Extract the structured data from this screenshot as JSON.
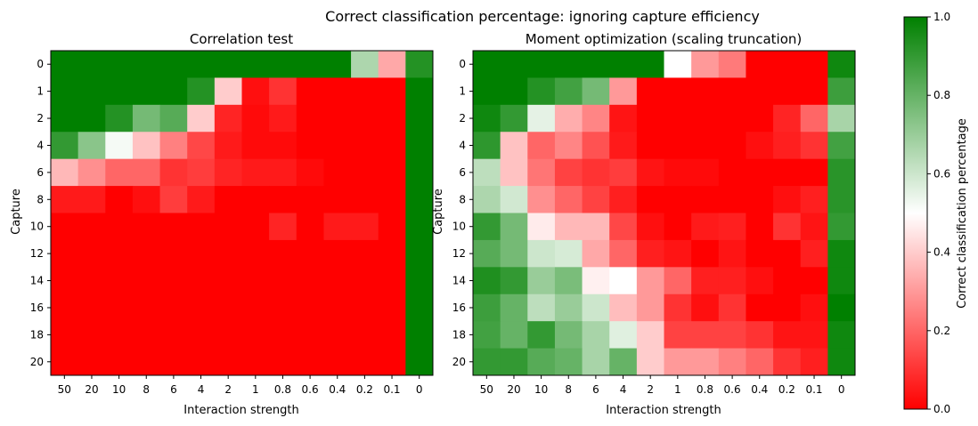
{
  "figure": {
    "suptitle": "Correct classification percentage: ignoring capture efficiency"
  },
  "colors": {
    "low": "#ff0000",
    "mid": "#ffffff",
    "high": "#008000"
  },
  "colorbar": {
    "label": "Correct classification percentage",
    "range": [
      0,
      1
    ],
    "ticks": [
      "0.0",
      "0.2",
      "0.4",
      "0.6",
      "0.8",
      "1.0"
    ]
  },
  "chart_data": [
    {
      "type": "heatmap",
      "title": "Correlation test",
      "xlabel": "Interaction strength",
      "ylabel": "Capture",
      "x": [
        "50",
        "20",
        "10",
        "8",
        "6",
        "4",
        "2",
        "1",
        "0.8",
        "0.6",
        "0.4",
        "0.2",
        "0.1",
        "0"
      ],
      "y": [
        "0",
        "1",
        "2",
        "4",
        "6",
        "8",
        "10",
        "12",
        "14",
        "16",
        "18",
        "20"
      ],
      "values": [
        [
          1.0,
          1.0,
          1.0,
          1.0,
          1.0,
          1.0,
          1.0,
          1.0,
          1.0,
          1.0,
          1.0,
          0.66,
          0.33,
          0.93
        ],
        [
          1.0,
          1.0,
          1.0,
          1.0,
          1.0,
          0.93,
          0.4,
          0.03,
          0.1,
          0.0,
          0.0,
          0.0,
          0.0,
          1.0
        ],
        [
          1.0,
          1.0,
          0.93,
          0.77,
          0.83,
          0.4,
          0.07,
          0.02,
          0.05,
          0.0,
          0.0,
          0.0,
          0.0,
          1.0
        ],
        [
          0.9,
          0.73,
          0.52,
          0.38,
          0.25,
          0.14,
          0.05,
          0.02,
          0.02,
          0.0,
          0.0,
          0.0,
          0.0,
          1.0
        ],
        [
          0.36,
          0.28,
          0.2,
          0.2,
          0.1,
          0.12,
          0.07,
          0.05,
          0.05,
          0.02,
          0.0,
          0.0,
          0.0,
          1.0
        ],
        [
          0.05,
          0.05,
          0.0,
          0.03,
          0.12,
          0.05,
          0.0,
          0.0,
          0.0,
          0.0,
          0.0,
          0.0,
          0.0,
          1.0
        ],
        [
          0.0,
          0.0,
          0.0,
          0.0,
          0.0,
          0.0,
          0.0,
          0.0,
          0.07,
          0.0,
          0.05,
          0.05,
          0.0,
          1.0
        ],
        [
          0.0,
          0.0,
          0.0,
          0.0,
          0.0,
          0.0,
          0.0,
          0.0,
          0.0,
          0.0,
          0.0,
          0.0,
          0.0,
          1.0
        ],
        [
          0.0,
          0.0,
          0.0,
          0.0,
          0.0,
          0.0,
          0.0,
          0.0,
          0.0,
          0.0,
          0.0,
          0.0,
          0.0,
          1.0
        ],
        [
          0.0,
          0.0,
          0.0,
          0.0,
          0.0,
          0.0,
          0.0,
          0.0,
          0.0,
          0.0,
          0.0,
          0.0,
          0.0,
          1.0
        ],
        [
          0.0,
          0.0,
          0.0,
          0.0,
          0.0,
          0.0,
          0.0,
          0.0,
          0.0,
          0.0,
          0.0,
          0.0,
          0.0,
          1.0
        ],
        [
          0.0,
          0.0,
          0.0,
          0.0,
          0.0,
          0.0,
          0.0,
          0.0,
          0.0,
          0.0,
          0.0,
          0.0,
          0.0,
          1.0
        ]
      ]
    },
    {
      "type": "heatmap",
      "title": "Moment optimization (scaling truncation)",
      "xlabel": "Interaction strength",
      "ylabel": "Capture",
      "x": [
        "50",
        "20",
        "10",
        "8",
        "6",
        "4",
        "2",
        "1",
        "0.8",
        "0.6",
        "0.4",
        "0.2",
        "0.1",
        "0"
      ],
      "y": [
        "0",
        "1",
        "2",
        "4",
        "6",
        "8",
        "10",
        "12",
        "14",
        "16",
        "18",
        "20"
      ],
      "values": [
        [
          1.0,
          1.0,
          1.0,
          1.0,
          1.0,
          1.0,
          1.0,
          0.5,
          0.3,
          0.24,
          0.0,
          0.0,
          0.0,
          0.97
        ],
        [
          1.0,
          1.0,
          0.93,
          0.87,
          0.77,
          0.3,
          0.0,
          0.0,
          0.0,
          0.0,
          0.0,
          0.0,
          0.0,
          0.88
        ],
        [
          0.97,
          0.9,
          0.55,
          0.34,
          0.26,
          0.04,
          0.0,
          0.0,
          0.0,
          0.0,
          0.0,
          0.07,
          0.2,
          0.67
        ],
        [
          0.91,
          0.38,
          0.2,
          0.26,
          0.16,
          0.05,
          0.0,
          0.0,
          0.0,
          0.0,
          0.03,
          0.06,
          0.1,
          0.87
        ],
        [
          0.63,
          0.38,
          0.23,
          0.13,
          0.1,
          0.12,
          0.04,
          0.02,
          0.02,
          0.0,
          0.0,
          0.0,
          0.0,
          0.92
        ],
        [
          0.66,
          0.59,
          0.28,
          0.2,
          0.13,
          0.06,
          0.0,
          0.0,
          0.0,
          0.0,
          0.0,
          0.03,
          0.06,
          0.92
        ],
        [
          0.9,
          0.77,
          0.46,
          0.36,
          0.36,
          0.14,
          0.03,
          0.0,
          0.05,
          0.06,
          0.0,
          0.1,
          0.04,
          0.9
        ],
        [
          0.83,
          0.77,
          0.6,
          0.58,
          0.33,
          0.2,
          0.06,
          0.04,
          0.0,
          0.04,
          0.0,
          0.0,
          0.06,
          0.97
        ],
        [
          0.94,
          0.9,
          0.7,
          0.76,
          0.47,
          0.5,
          0.3,
          0.2,
          0.06,
          0.06,
          0.03,
          0.0,
          0.0,
          0.97
        ],
        [
          0.88,
          0.8,
          0.63,
          0.7,
          0.6,
          0.37,
          0.3,
          0.1,
          0.03,
          0.1,
          0.0,
          0.0,
          0.03,
          1.0
        ],
        [
          0.87,
          0.8,
          0.9,
          0.77,
          0.67,
          0.56,
          0.4,
          0.13,
          0.13,
          0.13,
          0.1,
          0.04,
          0.04,
          0.97
        ],
        [
          0.9,
          0.9,
          0.83,
          0.8,
          0.67,
          0.8,
          0.4,
          0.3,
          0.3,
          0.25,
          0.2,
          0.1,
          0.06,
          0.97
        ]
      ]
    }
  ]
}
